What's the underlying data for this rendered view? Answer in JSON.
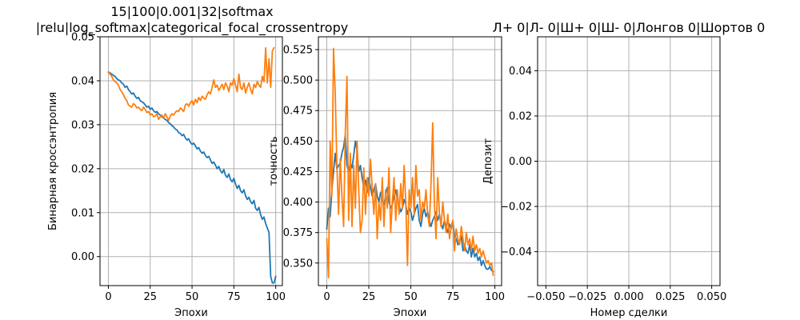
{
  "figure": {
    "background": "#ffffff",
    "series_colors": [
      "#1f77b4",
      "#ff7f0e"
    ]
  },
  "chart_data": [
    {
      "type": "line",
      "title_lines": [
        "15|100|0.001|32|softmax",
        "|relu|log_softmax|categorical_focal_crossentropy"
      ],
      "xlabel": "Эпохи",
      "ylabel": "Бинарная кроссэнтропия",
      "xlim": [
        -5,
        104
      ],
      "ylim": [
        -0.0066,
        0.05
      ],
      "xticks": [
        0,
        25,
        50,
        75,
        100
      ],
      "xtick_labels": [
        "0",
        "25",
        "50",
        "75",
        "100"
      ],
      "yticks": [
        0.0,
        0.01,
        0.02,
        0.03,
        0.04,
        0.05
      ],
      "ytick_labels": [
        "0.00",
        "0.01",
        "0.02",
        "0.03",
        "0.04",
        "0.05"
      ],
      "grid": true,
      "series": [
        {
          "color": "#1f77b4",
          "values": [
            0.042,
            0.0418,
            0.0415,
            0.0412,
            0.041,
            0.0405,
            0.0402,
            0.04,
            0.0395,
            0.0392,
            0.0385,
            0.0388,
            0.038,
            0.0375,
            0.037,
            0.0372,
            0.0365,
            0.036,
            0.0362,
            0.0355,
            0.0352,
            0.035,
            0.0345,
            0.034,
            0.0342,
            0.0335,
            0.0338,
            0.0332,
            0.0328,
            0.033,
            0.0325,
            0.0322,
            0.0318,
            0.0315,
            0.0312,
            0.031,
            0.0305,
            0.0302,
            0.0298,
            0.0295,
            0.029,
            0.0288,
            0.0282,
            0.028,
            0.0275,
            0.0278,
            0.027,
            0.0265,
            0.0268,
            0.026,
            0.0255,
            0.0258,
            0.0252,
            0.0245,
            0.0248,
            0.024,
            0.0235,
            0.0238,
            0.023,
            0.0225,
            0.0228,
            0.022,
            0.0212,
            0.0215,
            0.0208,
            0.02,
            0.0205,
            0.0195,
            0.019,
            0.0198,
            0.0185,
            0.018,
            0.0188,
            0.0175,
            0.017,
            0.0178,
            0.0165,
            0.0155,
            0.0162,
            0.015,
            0.0145,
            0.0152,
            0.0138,
            0.013,
            0.0135,
            0.0125,
            0.012,
            0.0128,
            0.011,
            0.0105,
            0.0112,
            0.0095,
            0.0085,
            0.009,
            0.0075,
            0.0065,
            0.0055,
            -0.0045,
            -0.006,
            -0.006,
            -0.0045
          ]
        },
        {
          "color": "#ff7f0e",
          "values": [
            0.042,
            0.0415,
            0.041,
            0.0402,
            0.0398,
            0.0395,
            0.039,
            0.038,
            0.0375,
            0.0368,
            0.036,
            0.0355,
            0.0345,
            0.0342,
            0.034,
            0.0348,
            0.0345,
            0.0338,
            0.034,
            0.0335,
            0.0332,
            0.034,
            0.0335,
            0.0328,
            0.033,
            0.0322,
            0.0325,
            0.0318,
            0.032,
            0.0325,
            0.0312,
            0.0318,
            0.0322,
            0.0315,
            0.0325,
            0.0318,
            0.031,
            0.032,
            0.0325,
            0.0322,
            0.0328,
            0.0332,
            0.033,
            0.0338,
            0.0335,
            0.033,
            0.0345,
            0.0348,
            0.0342,
            0.035,
            0.0355,
            0.0345,
            0.0358,
            0.035,
            0.0362,
            0.0355,
            0.0365,
            0.036,
            0.0358,
            0.0368,
            0.0375,
            0.037,
            0.0385,
            0.0402,
            0.0385,
            0.039,
            0.0378,
            0.0385,
            0.0392,
            0.038,
            0.0395,
            0.0388,
            0.0375,
            0.0395,
            0.039,
            0.0405,
            0.039,
            0.0375,
            0.0415,
            0.0385,
            0.038,
            0.0395,
            0.0372,
            0.0385,
            0.0395,
            0.038,
            0.037,
            0.0392,
            0.0385,
            0.0398,
            0.039,
            0.0385,
            0.041,
            0.0398,
            0.0475,
            0.0395,
            0.045,
            0.0385,
            0.0468,
            0.0475
          ]
        }
      ]
    },
    {
      "type": "line",
      "title_lines": [],
      "xlabel": "Эпохи",
      "ylabel": "точность",
      "xlim": [
        -5,
        104
      ],
      "ylim": [
        0.3315,
        0.5355
      ],
      "xticks": [
        0,
        25,
        50,
        75,
        100
      ],
      "xtick_labels": [
        "0",
        "25",
        "50",
        "75",
        "100"
      ],
      "yticks": [
        0.35,
        0.375,
        0.4,
        0.425,
        0.45,
        0.475,
        0.5,
        0.525
      ],
      "ytick_labels": [
        "0.350",
        "0.375",
        "0.400",
        "0.425",
        "0.450",
        "0.475",
        "0.500",
        "0.525"
      ],
      "grid": true,
      "series": [
        {
          "color": "#1f77b4",
          "values": [
            0.378,
            0.395,
            0.388,
            0.41,
            0.425,
            0.44,
            0.427,
            0.43,
            0.432,
            0.44,
            0.445,
            0.455,
            0.43,
            0.425,
            0.432,
            0.428,
            0.438,
            0.45,
            0.442,
            0.425,
            0.43,
            0.42,
            0.412,
            0.418,
            0.408,
            0.42,
            0.412,
            0.405,
            0.41,
            0.415,
            0.405,
            0.4,
            0.408,
            0.402,
            0.398,
            0.405,
            0.412,
            0.4,
            0.395,
            0.398,
            0.405,
            0.41,
            0.402,
            0.398,
            0.392,
            0.395,
            0.402,
            0.398,
            0.39,
            0.395,
            0.392,
            0.385,
            0.39,
            0.395,
            0.398,
            0.385,
            0.38,
            0.39,
            0.395,
            0.388,
            0.392,
            0.385,
            0.38,
            0.385,
            0.388,
            0.392,
            0.385,
            0.39,
            0.382,
            0.378,
            0.385,
            0.38,
            0.375,
            0.382,
            0.378,
            0.385,
            0.372,
            0.37,
            0.365,
            0.368,
            0.372,
            0.36,
            0.365,
            0.36,
            0.358,
            0.365,
            0.355,
            0.362,
            0.355,
            0.358,
            0.352,
            0.355,
            0.348,
            0.352,
            0.348,
            0.345,
            0.345,
            0.347,
            0.344,
            0.343
          ]
        },
        {
          "color": "#ff7f0e",
          "values": [
            0.37,
            0.338,
            0.45,
            0.405,
            0.526,
            0.49,
            0.43,
            0.39,
            0.435,
            0.405,
            0.38,
            0.456,
            0.503,
            0.385,
            0.44,
            0.38,
            0.43,
            0.395,
            0.45,
            0.41,
            0.375,
            0.385,
            0.428,
            0.39,
            0.42,
            0.405,
            0.435,
            0.412,
            0.39,
            0.415,
            0.37,
            0.4,
            0.385,
            0.42,
            0.38,
            0.41,
            0.395,
            0.428,
            0.375,
            0.4,
            0.42,
            0.385,
            0.41,
            0.39,
            0.415,
            0.395,
            0.43,
            0.4,
            0.348,
            0.41,
            0.395,
            0.42,
            0.39,
            0.43,
            0.405,
            0.41,
            0.385,
            0.4,
            0.395,
            0.41,
            0.39,
            0.38,
            0.415,
            0.465,
            0.4,
            0.37,
            0.42,
            0.39,
            0.38,
            0.4,
            0.385,
            0.375,
            0.39,
            0.37,
            0.38,
            0.385,
            0.36,
            0.378,
            0.37,
            0.365,
            0.38,
            0.37,
            0.36,
            0.375,
            0.365,
            0.37,
            0.36,
            0.372,
            0.36,
            0.365,
            0.358,
            0.362,
            0.355,
            0.36,
            0.355,
            0.35,
            0.352,
            0.348,
            0.35,
            0.34
          ]
        }
      ]
    },
    {
      "type": "line",
      "title_lines": [
        "Л+ 0|Л- 0|Ш+ 0|Ш- 0|Лонгов 0|Шортов 0"
      ],
      "xlabel": "Номер сделки",
      "ylabel": "Депозит",
      "xlim": [
        -0.055,
        0.055
      ],
      "ylim": [
        -0.055,
        0.055
      ],
      "xticks": [
        -0.05,
        -0.025,
        0.0,
        0.025,
        0.05
      ],
      "xtick_labels": [
        "−0.050",
        "−0.025",
        "0.000",
        "0.025",
        "0.050"
      ],
      "yticks": [
        -0.04,
        -0.02,
        0.0,
        0.02,
        0.04
      ],
      "ytick_labels": [
        "−0.04",
        "−0.02",
        "0.00",
        "0.02",
        "0.04"
      ],
      "grid": true,
      "series": []
    }
  ]
}
